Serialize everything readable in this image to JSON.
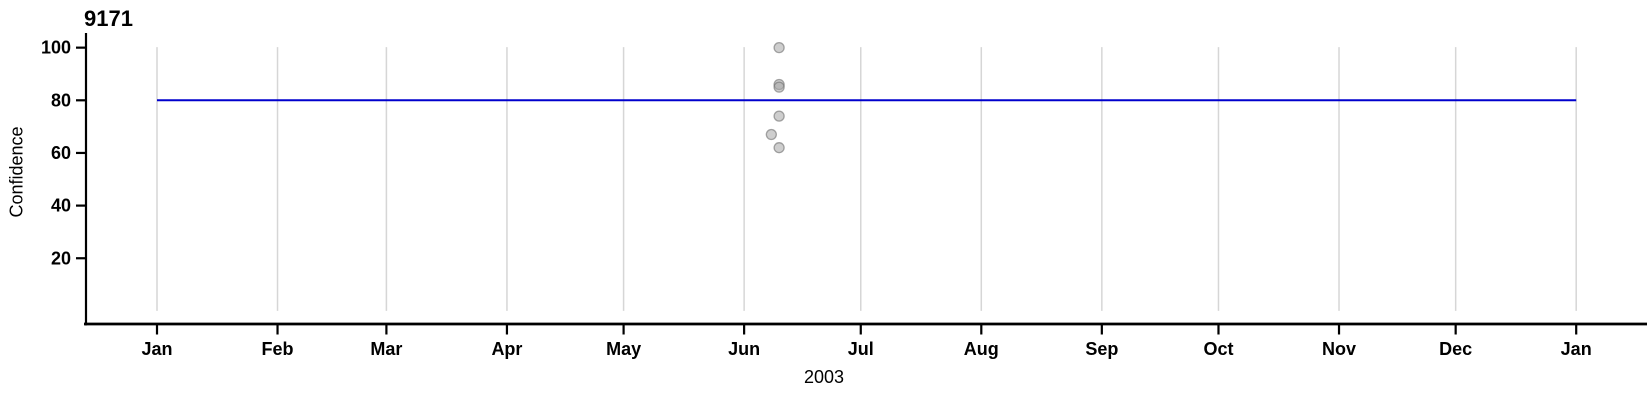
{
  "chart_data": {
    "type": "scatter",
    "title": "9171",
    "xlabel": "2003",
    "ylabel": "Confidence",
    "x_axis": {
      "kind": "time-months",
      "tick_labels": [
        "Jan",
        "Feb",
        "Mar",
        "Apr",
        "May",
        "Jun",
        "Jul",
        "Aug",
        "Sep",
        "Oct",
        "Nov",
        "Dec",
        "Jan"
      ],
      "tick_day_of_year": [
        0,
        31,
        59,
        90,
        120,
        151,
        181,
        212,
        243,
        273,
        304,
        334,
        365
      ],
      "domain_days": [
        0,
        365
      ],
      "grid": true
    },
    "y_axis": {
      "ticks": [
        20,
        40,
        60,
        80,
        100
      ],
      "ylim": [
        -5,
        106
      ],
      "grid_value_span": [
        0,
        100.2
      ],
      "grid": false
    },
    "reference_line": {
      "orientation": "horizontal",
      "value": 80,
      "color": "#0000cd"
    },
    "series": [
      {
        "name": "observations",
        "marker": "circle",
        "marker_radius": 5,
        "fill": "rgba(166,166,166,0.55)",
        "stroke": "rgba(110,110,110,0.6)",
        "points": [
          {
            "date": "2003-06-10",
            "day_of_year": 160,
            "confidence": 100
          },
          {
            "date": "2003-06-10",
            "day_of_year": 160,
            "confidence": 86
          },
          {
            "date": "2003-06-10",
            "day_of_year": 160,
            "confidence": 85
          },
          {
            "date": "2003-06-10",
            "day_of_year": 160,
            "confidence": 74
          },
          {
            "date": "2003-06-08",
            "day_of_year": 158,
            "confidence": 67
          },
          {
            "date": "2003-06-10",
            "day_of_year": 160,
            "confidence": 62
          }
        ]
      }
    ],
    "colors": {
      "grid": "#d6d6d6",
      "axis": "#000000",
      "text": "#000000",
      "refline": "#0000cd",
      "background": "#ffffff"
    },
    "legend": "none"
  }
}
